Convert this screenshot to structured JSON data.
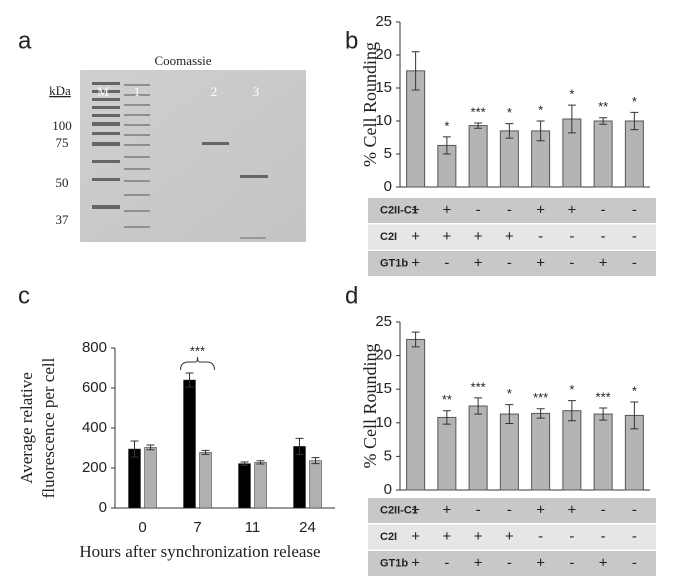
{
  "panels": [
    "a",
    "b",
    "c",
    "d"
  ],
  "gel": {
    "title": "Coomassie",
    "unit": "kDa",
    "lanes": [
      "M",
      "1",
      "2",
      "3"
    ],
    "markers": [
      "100",
      "75",
      "50",
      "37"
    ]
  },
  "chart_data": [
    {
      "type": "bar",
      "ylabel": "% Cell Rounding",
      "values": [
        17.6,
        6.3,
        9.3,
        8.5,
        8.5,
        10.3,
        10.0,
        10.0
      ],
      "errors": [
        2.9,
        1.3,
        0.4,
        1.1,
        1.5,
        2.1,
        0.5,
        1.3
      ],
      "significance": [
        null,
        "*",
        "***",
        "*",
        "*",
        "*",
        "**",
        "*"
      ],
      "color": "#b4b4b4",
      "ylim": [
        0,
        25
      ],
      "yticks": [
        0,
        5,
        10,
        15,
        20,
        25
      ],
      "conditions": [
        {
          "name": "C2II-C1",
          "signs": [
            "+",
            "+",
            "-",
            "-",
            "+",
            "+",
            "-",
            "-"
          ]
        },
        {
          "name": "C2I",
          "signs": [
            "+",
            "+",
            "+",
            "+",
            "-",
            "-",
            "-",
            "-"
          ]
        },
        {
          "name": "GT1b",
          "signs": [
            "+",
            "-",
            "+",
            "-",
            "+",
            "-",
            "+",
            "-"
          ]
        }
      ]
    },
    {
      "type": "grouped_bar",
      "ylabel": [
        "Average relative",
        "fluorescence per cell"
      ],
      "xlabel": "Hours after synchronization release",
      "categories": [
        "0",
        "7",
        "11",
        "24"
      ],
      "series": [
        {
          "color": "#000000",
          "values": [
            295,
            640,
            222,
            308
          ],
          "errors": [
            40,
            35,
            8,
            40
          ]
        },
        {
          "color": "#b0b0b0",
          "values": [
            303,
            278,
            228,
            237
          ],
          "errors": [
            12,
            10,
            8,
            15
          ]
        }
      ],
      "annotation": "***",
      "ylim": [
        0,
        800
      ],
      "yticks": [
        0,
        200,
        400,
        600,
        800
      ]
    },
    {
      "type": "bar",
      "ylabel": "% Cell Rounding",
      "values": [
        22.4,
        10.8,
        12.5,
        11.3,
        11.4,
        11.8,
        11.3,
        11.1
      ],
      "errors": [
        1.1,
        1.0,
        1.2,
        1.4,
        0.7,
        1.5,
        0.9,
        2.0
      ],
      "significance": [
        null,
        "**",
        "***",
        "*",
        "***",
        "*",
        "***",
        "*"
      ],
      "color": "#b4b4b4",
      "ylim": [
        0,
        25
      ],
      "yticks": [
        0,
        5,
        10,
        15,
        20,
        25
      ],
      "conditions": [
        {
          "name": "C2II-C1",
          "signs": [
            "+",
            "+",
            "-",
            "-",
            "+",
            "+",
            "-",
            "-"
          ]
        },
        {
          "name": "C2I",
          "signs": [
            "+",
            "+",
            "+",
            "+",
            "-",
            "-",
            "-",
            "-"
          ]
        },
        {
          "name": "GT1b",
          "signs": [
            "+",
            "-",
            "+",
            "-",
            "+",
            "-",
            "+",
            "-"
          ]
        }
      ]
    }
  ]
}
